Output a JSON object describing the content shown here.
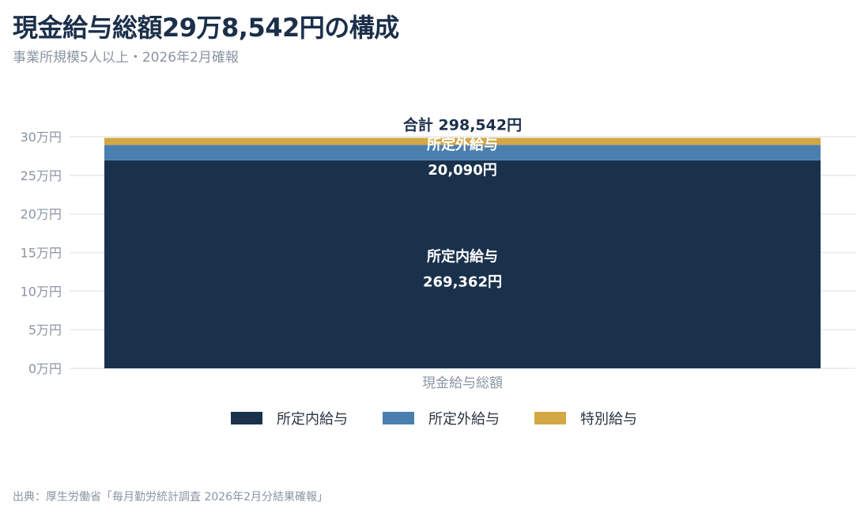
{
  "header": {
    "title": "現金給与総額29万8,542円の構成",
    "subtitle": "事業所規模5人以上・2026年2月確報"
  },
  "source": "出典：厚生労働省「毎月勤労統計調査 2026年2月分結果確報」",
  "chart_data": {
    "type": "bar",
    "stacked": true,
    "categories": [
      "現金給与総額"
    ],
    "series": [
      {
        "name": "所定内給与",
        "values": [
          269362
        ],
        "color": "#1a314c",
        "label_name": "所定内給与",
        "label_value": "269,362円"
      },
      {
        "name": "所定外給与",
        "values": [
          20090
        ],
        "color": "#4a7fb0",
        "label_name": "所定外給与",
        "label_value": "20,090円"
      },
      {
        "name": "特別給与",
        "values": [
          9090
        ],
        "color": "#d4a745"
      }
    ],
    "total_label": "合計 298,542円",
    "y_ticks": [
      {
        "value": 0,
        "label": "0万円"
      },
      {
        "value": 50000,
        "label": "5万円"
      },
      {
        "value": 100000,
        "label": "10万円"
      },
      {
        "value": 150000,
        "label": "15万円"
      },
      {
        "value": 200000,
        "label": "20万円"
      },
      {
        "value": 250000,
        "label": "25万円"
      },
      {
        "value": 300000,
        "label": "30万円"
      }
    ],
    "ylim": [
      0,
      300000
    ],
    "grid": true,
    "legend_position": "bottom"
  }
}
